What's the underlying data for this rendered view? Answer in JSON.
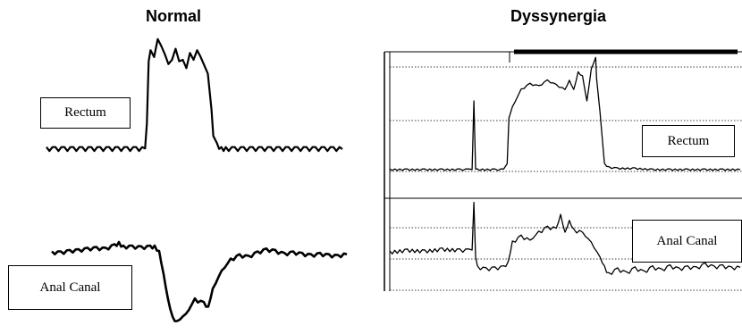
{
  "chart_data": [
    {
      "type": "line",
      "title": "Normal",
      "grid": false,
      "series": [
        {
          "name": "Rectum",
          "x": [
            0,
            10,
            20,
            30,
            40,
            50,
            60,
            70,
            80,
            90,
            100,
            110,
            112,
            114,
            116,
            120,
            124,
            128,
            132,
            136,
            140,
            144,
            148,
            152,
            156,
            160,
            164,
            168,
            172,
            176,
            180,
            184,
            186,
            190,
            195,
            200,
            210,
            220,
            230,
            240,
            250,
            260,
            270,
            280,
            290,
            300,
            310,
            320,
            330
          ],
          "values": [
            2,
            2,
            2,
            2,
            2,
            2,
            2,
            2,
            2,
            2,
            2,
            2,
            20,
            65,
            72,
            68,
            80,
            76,
            70,
            62,
            66,
            74,
            64,
            66,
            60,
            70,
            66,
            72,
            68,
            62,
            56,
            30,
            10,
            5,
            2,
            2,
            2,
            2,
            2,
            2,
            2,
            2,
            2,
            2,
            2,
            2,
            2,
            2,
            2
          ]
        },
        {
          "name": "Anal Canal",
          "x": [
            0,
            10,
            20,
            30,
            40,
            50,
            60,
            70,
            75,
            80,
            90,
            100,
            110,
            115,
            120,
            125,
            130,
            135,
            140,
            150,
            160,
            170,
            175,
            180,
            190,
            200,
            210,
            220,
            230,
            240,
            250,
            260,
            270,
            280,
            290,
            300,
            310,
            320,
            330
          ],
          "values": [
            50,
            50,
            52,
            53,
            55,
            56,
            55,
            60,
            63,
            58,
            58,
            57,
            58,
            58,
            52,
            20,
            -15,
            -40,
            -45,
            -35,
            -15,
            -20,
            -25,
            0,
            25,
            40,
            46,
            44,
            50,
            54,
            52,
            48,
            50,
            48,
            46,
            48,
            46,
            45,
            48
          ]
        }
      ]
    },
    {
      "type": "line",
      "title": "Dyssynergia",
      "grid": true,
      "series": [
        {
          "name": "Rectum",
          "x": [
            0,
            20,
            40,
            60,
            80,
            90,
            94,
            96,
            98,
            100,
            120,
            130,
            134,
            136,
            140,
            150,
            160,
            170,
            180,
            190,
            200,
            205,
            210,
            215,
            220,
            225,
            230,
            235,
            236,
            240,
            245,
            250,
            260,
            280,
            300,
            320,
            340,
            360,
            380,
            400
          ],
          "values": [
            0,
            0,
            0,
            0,
            0,
            0,
            0,
            60,
            0,
            0,
            0,
            0,
            5,
            45,
            55,
            70,
            75,
            73,
            78,
            74,
            70,
            78,
            70,
            85,
            82,
            60,
            88,
            98,
            80,
            50,
            5,
            2,
            1,
            1,
            0,
            0,
            0,
            0,
            0,
            0
          ]
        },
        {
          "name": "Anal Canal",
          "x": [
            0,
            20,
            40,
            60,
            80,
            90,
            94,
            96,
            98,
            100,
            110,
            120,
            130,
            135,
            140,
            150,
            160,
            170,
            180,
            190,
            195,
            200,
            205,
            210,
            220,
            230,
            240,
            245,
            250,
            260,
            270,
            280,
            290,
            300,
            310,
            320,
            330,
            340,
            350,
            360,
            370,
            380,
            390,
            400
          ],
          "values": [
            20,
            22,
            21,
            23,
            22,
            22,
            22,
            70,
            15,
            5,
            3,
            4,
            5,
            10,
            30,
            36,
            32,
            40,
            45,
            44,
            58,
            40,
            52,
            42,
            40,
            30,
            15,
            5,
            -2,
            3,
            -1,
            4,
            0,
            5,
            2,
            6,
            3,
            5,
            4,
            8,
            5,
            6,
            4,
            5
          ]
        }
      ]
    }
  ],
  "titles": {
    "normal": "Normal",
    "dyssynergia": "Dyssynergia"
  },
  "labels": {
    "normal_rectum": "Rectum",
    "normal_anal": "Anal Canal",
    "dys_rectum": "Rectum",
    "dys_anal": "Anal Canal"
  }
}
